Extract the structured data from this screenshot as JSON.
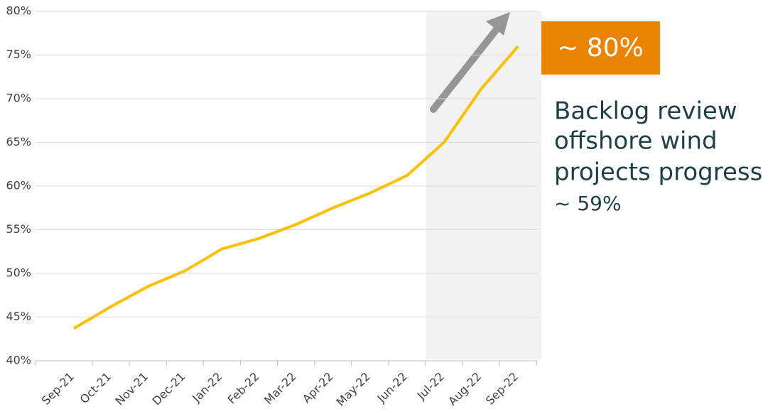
{
  "chart_data": {
    "type": "line",
    "categories": [
      "Sep-21",
      "Oct-21",
      "Nov-21",
      "Dec-21",
      "Jan-22",
      "Feb-22",
      "Mar-22",
      "Apr-22",
      "May-22",
      "Jun-22",
      "Jul-22",
      "Aug-22",
      "Sep-22"
    ],
    "values": [
      43.7,
      46.2,
      48.5,
      50.3,
      52.8,
      54.0,
      55.6,
      57.5,
      59.2,
      61.2,
      65.0,
      71.1,
      76.0
    ],
    "color": "#ffc000",
    "ylim": [
      40,
      80
    ],
    "yticks": [
      {
        "value": 40,
        "label": "40%"
      },
      {
        "value": 45,
        "label": "45%"
      },
      {
        "value": 50,
        "label": "50%"
      },
      {
        "value": 55,
        "label": "55%"
      },
      {
        "value": 60,
        "label": "60%"
      },
      {
        "value": 65,
        "label": "65%"
      },
      {
        "value": 70,
        "label": "70%"
      },
      {
        "value": 75,
        "label": "75%"
      },
      {
        "value": 80,
        "label": "80%"
      }
    ],
    "grid": true,
    "annotations": {
      "target": "~ 80%",
      "note": [
        "Backlog review",
        "offshore wind",
        "projects progress",
        "~ 59%"
      ]
    }
  }
}
